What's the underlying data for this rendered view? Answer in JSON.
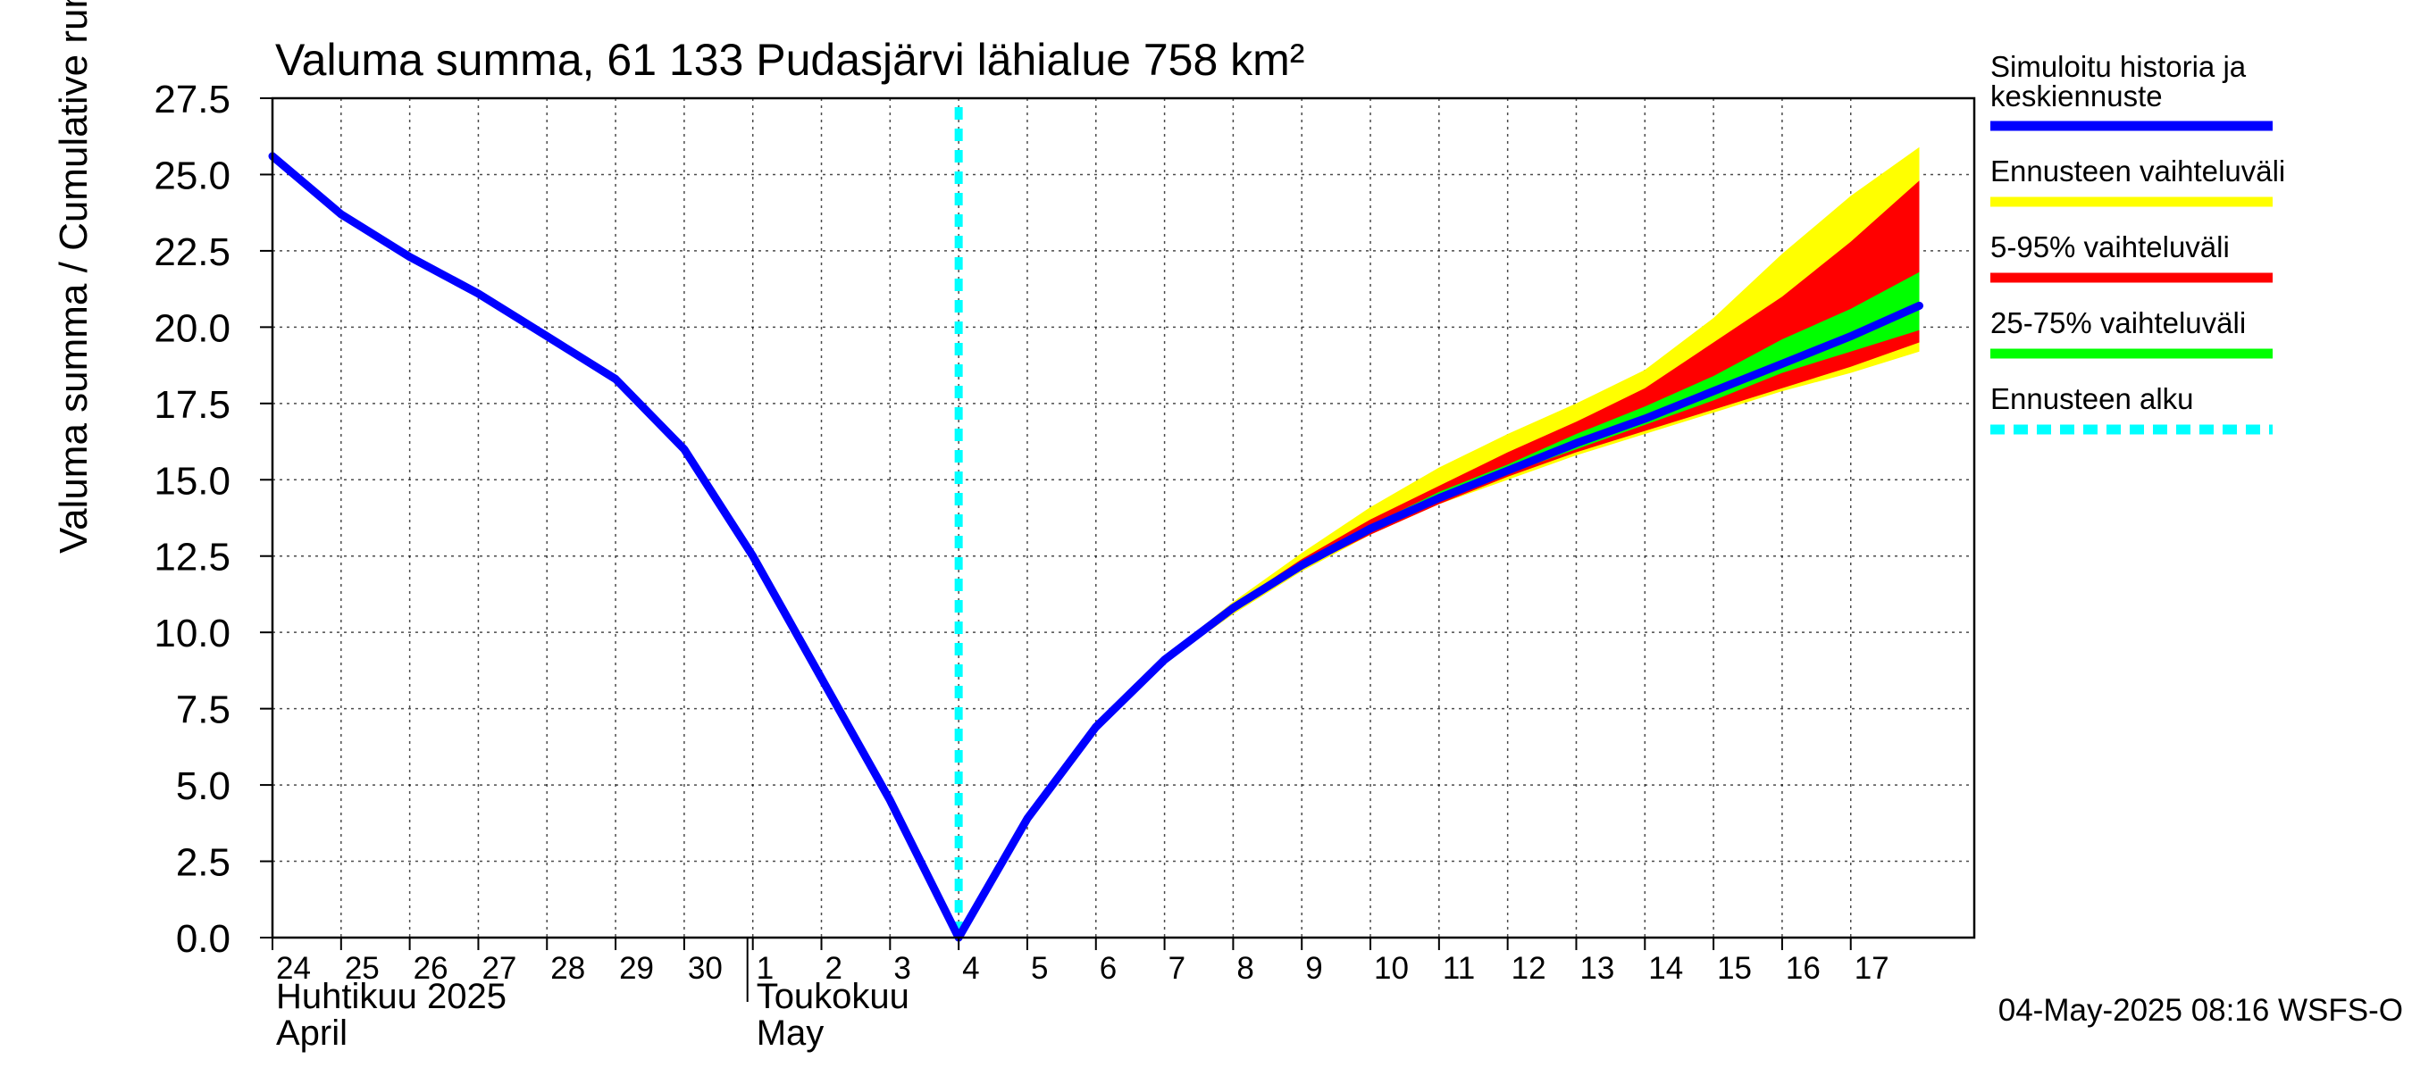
{
  "chart_data": {
    "type": "area",
    "title": "Valuma summa, 61 133 Pudasjärvi lähialue 758 km²",
    "ylabel": "Valuma summa / Cumulative runoff    mm",
    "xlabel": "",
    "ylim": [
      0,
      27.5
    ],
    "yticks": [
      "0.0",
      "2.5",
      "5.0",
      "7.5",
      "10.0",
      "12.5",
      "15.0",
      "17.5",
      "20.0",
      "22.5",
      "25.0",
      "27.5"
    ],
    "x_start_day": "2025-04-24",
    "x_days": 24.8,
    "day_labels": [
      "24",
      "25",
      "26",
      "27",
      "28",
      "29",
      "30",
      "1",
      "2",
      "3",
      "4",
      "5",
      "6",
      "7",
      "8",
      "9",
      "10",
      "11",
      "12",
      "13",
      "14",
      "15",
      "16",
      "17"
    ],
    "month_labels": [
      {
        "day": 0,
        "fi": "Huhtikuu  2025",
        "en": "April"
      },
      {
        "day": 7,
        "fi": "Toukokuu",
        "en": "May"
      }
    ],
    "forecast_start_day": 10,
    "grid": true,
    "legend_position": "right",
    "legend": [
      {
        "label": "Simuloitu historia ja keskiennuste",
        "line1": "Simuloitu historia ja",
        "line2": "keskiennuste",
        "color": "#0000ff",
        "style": "solid"
      },
      {
        "label": "Ennusteen vaihteluväli",
        "color": "#ffff00",
        "style": "solid"
      },
      {
        "label": "5-95% vaihteluväli",
        "color": "#ff0000",
        "style": "solid"
      },
      {
        "label": "25-75% vaihteluväli",
        "color": "#00ff00",
        "style": "solid"
      },
      {
        "label": "Ennusteen alku",
        "color": "#00ffff",
        "style": "dashed"
      }
    ],
    "series_history": [
      [
        0,
        25.6
      ],
      [
        1,
        23.7
      ],
      [
        2,
        22.3
      ],
      [
        3,
        21.1
      ],
      [
        4,
        19.7
      ],
      [
        5,
        18.3
      ],
      [
        6,
        16.0
      ],
      [
        7,
        12.5
      ],
      [
        8,
        8.5
      ],
      [
        9,
        4.5
      ],
      [
        10,
        0.0
      ]
    ],
    "series_median": [
      [
        10,
        0.0
      ],
      [
        11,
        3.9
      ],
      [
        12,
        6.9
      ],
      [
        13,
        9.1
      ],
      [
        14,
        10.8
      ],
      [
        15,
        12.2
      ],
      [
        16,
        13.4
      ],
      [
        17,
        14.4
      ],
      [
        18,
        15.3
      ],
      [
        19,
        16.2
      ],
      [
        20,
        17.0
      ],
      [
        21,
        17.9
      ],
      [
        22,
        18.8
      ],
      [
        23,
        19.7
      ],
      [
        24,
        20.7
      ]
    ],
    "band_full_upper": [
      [
        10,
        0.0
      ],
      [
        11,
        3.9
      ],
      [
        12,
        6.9
      ],
      [
        13,
        9.2
      ],
      [
        14,
        11.0
      ],
      [
        15,
        12.6
      ],
      [
        16,
        14.1
      ],
      [
        17,
        15.4
      ],
      [
        18,
        16.5
      ],
      [
        19,
        17.5
      ],
      [
        20,
        18.6
      ],
      [
        21,
        20.3
      ],
      [
        22,
        22.4
      ],
      [
        23,
        24.3
      ],
      [
        24,
        25.9
      ]
    ],
    "band_full_lower": [
      [
        10,
        0.0
      ],
      [
        11,
        3.9
      ],
      [
        12,
        6.9
      ],
      [
        13,
        9.0
      ],
      [
        14,
        10.6
      ],
      [
        15,
        12.0
      ],
      [
        16,
        13.2
      ],
      [
        17,
        14.2
      ],
      [
        18,
        15.0
      ],
      [
        19,
        15.8
      ],
      [
        20,
        16.5
      ],
      [
        21,
        17.2
      ],
      [
        22,
        17.9
      ],
      [
        23,
        18.5
      ],
      [
        24,
        19.2
      ]
    ],
    "band_5_95_upper": [
      [
        10,
        0.0
      ],
      [
        11,
        3.9
      ],
      [
        12,
        6.9
      ],
      [
        13,
        9.1
      ],
      [
        14,
        10.9
      ],
      [
        15,
        12.4
      ],
      [
        16,
        13.7
      ],
      [
        17,
        14.8
      ],
      [
        18,
        15.9
      ],
      [
        19,
        16.9
      ],
      [
        20,
        18.0
      ],
      [
        21,
        19.5
      ],
      [
        22,
        21.0
      ],
      [
        23,
        22.8
      ],
      [
        24,
        24.8
      ]
    ],
    "band_5_95_lower": [
      [
        10,
        0.0
      ],
      [
        11,
        3.9
      ],
      [
        12,
        6.9
      ],
      [
        13,
        9.0
      ],
      [
        14,
        10.7
      ],
      [
        15,
        12.1
      ],
      [
        16,
        13.2
      ],
      [
        17,
        14.2
      ],
      [
        18,
        15.1
      ],
      [
        19,
        15.9
      ],
      [
        20,
        16.6
      ],
      [
        21,
        17.3
      ],
      [
        22,
        18.0
      ],
      [
        23,
        18.7
      ],
      [
        24,
        19.5
      ]
    ],
    "band_25_75_upper": [
      [
        10,
        0.0
      ],
      [
        11,
        3.9
      ],
      [
        12,
        6.9
      ],
      [
        13,
        9.1
      ],
      [
        14,
        10.8
      ],
      [
        15,
        12.3
      ],
      [
        16,
        13.5
      ],
      [
        17,
        14.6
      ],
      [
        18,
        15.5
      ],
      [
        19,
        16.5
      ],
      [
        20,
        17.4
      ],
      [
        21,
        18.4
      ],
      [
        22,
        19.6
      ],
      [
        23,
        20.6
      ],
      [
        24,
        21.8
      ]
    ],
    "band_25_75_lower": [
      [
        10,
        0.0
      ],
      [
        11,
        3.9
      ],
      [
        12,
        6.9
      ],
      [
        13,
        9.1
      ],
      [
        14,
        10.8
      ],
      [
        15,
        12.1
      ],
      [
        16,
        13.3
      ],
      [
        17,
        14.3
      ],
      [
        18,
        15.2
      ],
      [
        19,
        16.0
      ],
      [
        20,
        16.8
      ],
      [
        21,
        17.6
      ],
      [
        22,
        18.5
      ],
      [
        23,
        19.2
      ],
      [
        24,
        19.9
      ]
    ],
    "footer": "04-May-2025 08:16 WSFS-O"
  }
}
